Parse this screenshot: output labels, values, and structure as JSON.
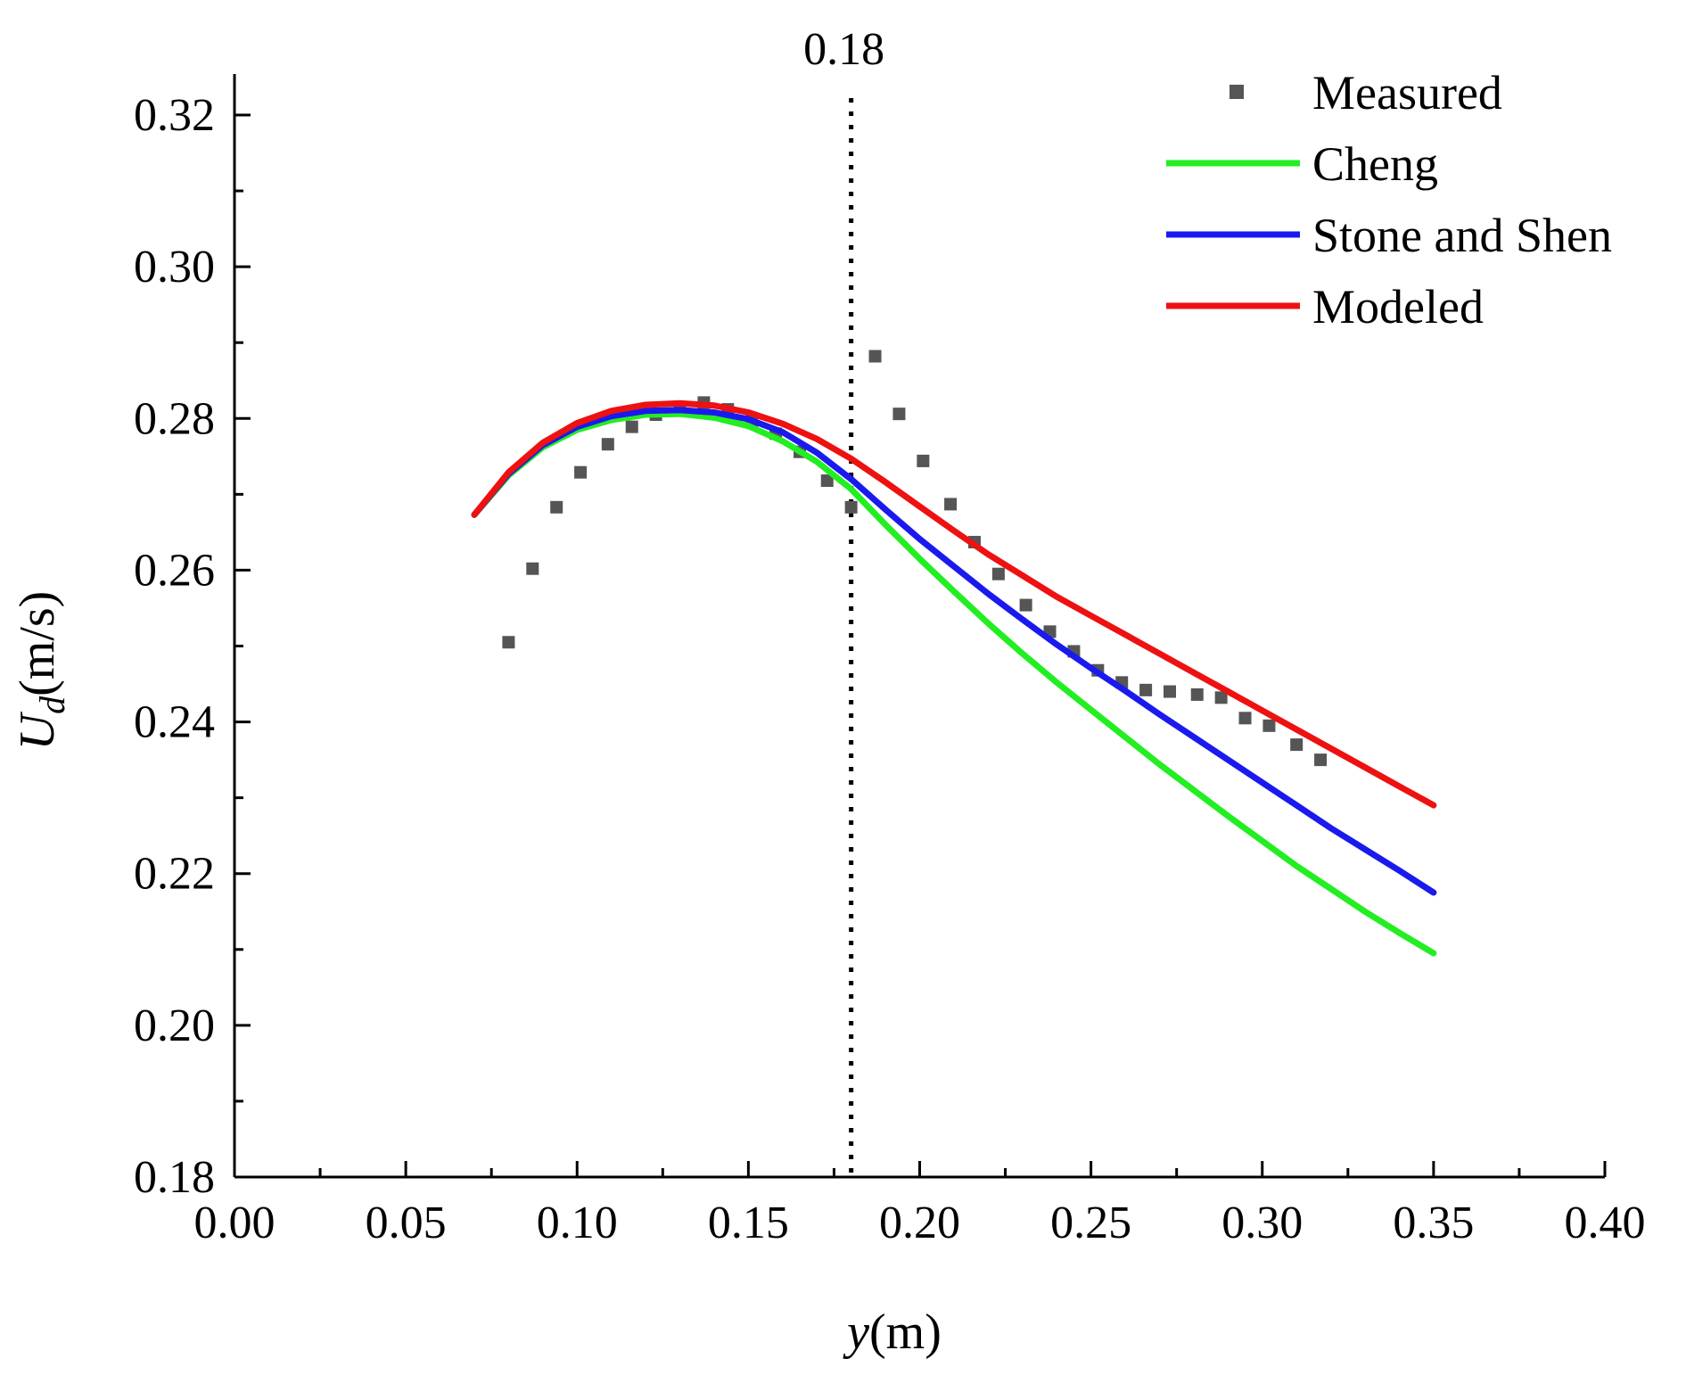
{
  "chart_data": {
    "type": "line",
    "title": "",
    "xlabel": {
      "italic": "y",
      "rest": "(m)"
    },
    "ylabel": {
      "italic": "U",
      "sub": "d",
      "rest": "(m/s)"
    },
    "xlim": [
      0.0,
      0.4
    ],
    "ylim": [
      0.18,
      0.325
    ],
    "xticks": [
      "0.00",
      "0.05",
      "0.10",
      "0.15",
      "0.20",
      "0.25",
      "0.30",
      "0.35",
      "0.40"
    ],
    "yticks": [
      "0.18",
      "0.20",
      "0.22",
      "0.24",
      "0.26",
      "0.28",
      "0.30",
      "0.32"
    ],
    "grid": false,
    "legend_position": "top-right",
    "reference_line": {
      "x": 0.18,
      "label": "0.18",
      "style": "dotted"
    },
    "series": [
      {
        "name": "Measured",
        "kind": "scatter",
        "color": "#555555",
        "x": [
          0.08,
          0.087,
          0.094,
          0.101,
          0.109,
          0.116,
          0.123,
          0.13,
          0.137,
          0.144,
          0.151,
          0.158,
          0.165,
          0.173,
          0.18,
          0.187,
          0.194,
          0.201,
          0.209,
          0.216,
          0.223,
          0.231,
          0.238,
          0.245,
          0.252,
          0.259,
          0.266,
          0.273,
          0.281,
          0.288,
          0.295,
          0.302,
          0.31,
          0.317
        ],
        "y": [
          0.2505,
          0.2602,
          0.2683,
          0.2729,
          0.2766,
          0.2789,
          0.2805,
          0.2815,
          0.2821,
          0.2812,
          0.2797,
          0.278,
          0.2756,
          0.2718,
          0.2683,
          0.2882,
          0.2806,
          0.2744,
          0.2687,
          0.2637,
          0.2595,
          0.2554,
          0.2519,
          0.2493,
          0.2468,
          0.2452,
          0.2442,
          0.244,
          0.2436,
          0.2432,
          0.2405,
          0.2395,
          0.237,
          0.235
        ]
      },
      {
        "name": "Cheng",
        "kind": "line",
        "color": "#22ee22",
        "x": [
          0.07,
          0.08,
          0.09,
          0.1,
          0.11,
          0.12,
          0.13,
          0.14,
          0.15,
          0.16,
          0.17,
          0.18,
          0.19,
          0.2,
          0.21,
          0.22,
          0.23,
          0.24,
          0.25,
          0.26,
          0.27,
          0.28,
          0.29,
          0.3,
          0.31,
          0.32,
          0.33,
          0.34,
          0.35
        ],
        "y": [
          0.2673,
          0.2725,
          0.2762,
          0.2785,
          0.2798,
          0.2805,
          0.2806,
          0.2801,
          0.279,
          0.277,
          0.2743,
          0.2707,
          0.266,
          0.2615,
          0.2572,
          0.253,
          0.249,
          0.2452,
          0.2416,
          0.238,
          0.2344,
          0.231,
          0.2276,
          0.2243,
          0.221,
          0.218,
          0.215,
          0.2122,
          0.2095
        ]
      },
      {
        "name": "Stone and Shen",
        "kind": "line",
        "color": "#1a1aee",
        "x": [
          0.07,
          0.08,
          0.09,
          0.1,
          0.11,
          0.12,
          0.13,
          0.14,
          0.15,
          0.16,
          0.17,
          0.18,
          0.19,
          0.2,
          0.21,
          0.22,
          0.23,
          0.24,
          0.25,
          0.26,
          0.27,
          0.28,
          0.29,
          0.3,
          0.31,
          0.32,
          0.33,
          0.34,
          0.35
        ],
        "y": [
          0.2673,
          0.2727,
          0.2765,
          0.2789,
          0.2803,
          0.281,
          0.2811,
          0.2808,
          0.2799,
          0.2782,
          0.2755,
          0.272,
          0.268,
          0.2641,
          0.2605,
          0.2569,
          0.2535,
          0.2502,
          0.2471,
          0.2441,
          0.241,
          0.238,
          0.235,
          0.232,
          0.229,
          0.226,
          0.2232,
          0.2204,
          0.2175
        ]
      },
      {
        "name": "Modeled",
        "kind": "line",
        "color": "#ee1111",
        "x": [
          0.07,
          0.08,
          0.09,
          0.1,
          0.11,
          0.12,
          0.13,
          0.14,
          0.15,
          0.16,
          0.17,
          0.18,
          0.19,
          0.2,
          0.21,
          0.22,
          0.23,
          0.24,
          0.25,
          0.26,
          0.27,
          0.28,
          0.29,
          0.3,
          0.31,
          0.32,
          0.33,
          0.34,
          0.35
        ],
        "y": [
          0.2673,
          0.2729,
          0.2768,
          0.2794,
          0.281,
          0.2818,
          0.282,
          0.2817,
          0.2808,
          0.2793,
          0.2773,
          0.2747,
          0.2716,
          0.2684,
          0.2652,
          0.2621,
          0.2593,
          0.2565,
          0.254,
          0.2515,
          0.249,
          0.2465,
          0.244,
          0.2415,
          0.239,
          0.2365,
          0.234,
          0.2315,
          0.229
        ]
      }
    ]
  }
}
